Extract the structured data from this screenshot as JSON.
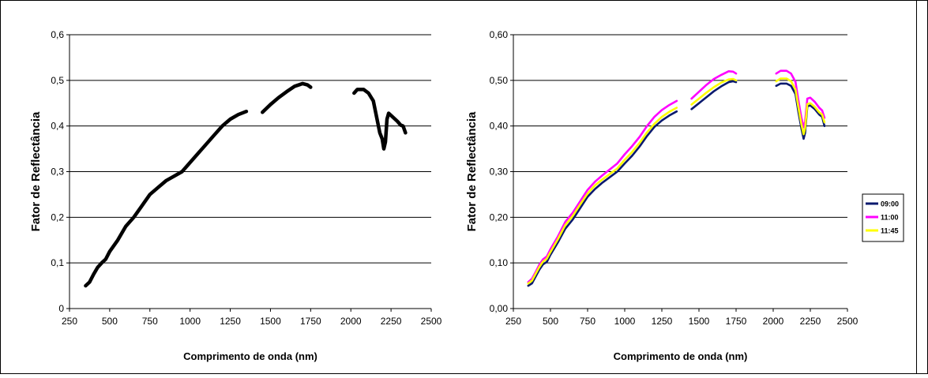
{
  "chart_data": [
    {
      "type": "line",
      "xlabel": "Comprimento de onda (nm)",
      "ylabel": "Fator de Reflectância",
      "xlim": [
        250,
        2500
      ],
      "ylim": [
        0,
        0.6
      ],
      "xticks": [
        "250",
        "500",
        "750",
        "1000",
        "1250",
        "1500",
        "1750",
        "2000",
        "2250",
        "2500"
      ],
      "yticks": [
        "0",
        "0,1",
        "0,2",
        "0,3",
        "0,4",
        "0,5",
        "0,6"
      ],
      "grid": "horizontal",
      "legend": "none",
      "colors": [
        "#000000"
      ],
      "series": [
        {
          "segments": [
            [
              [
                350,
                0.05
              ],
              [
                375,
                0.058
              ],
              [
                400,
                0.075
              ],
              [
                425,
                0.09
              ],
              [
                450,
                0.1
              ],
              [
                475,
                0.108
              ],
              [
                500,
                0.125
              ],
              [
                550,
                0.15
              ],
              [
                600,
                0.18
              ],
              [
                650,
                0.2
              ],
              [
                700,
                0.225
              ],
              [
                750,
                0.25
              ],
              [
                800,
                0.265
              ],
              [
                850,
                0.28
              ],
              [
                900,
                0.29
              ],
              [
                950,
                0.3
              ],
              [
                1000,
                0.32
              ],
              [
                1050,
                0.34
              ],
              [
                1100,
                0.36
              ],
              [
                1150,
                0.38
              ],
              [
                1200,
                0.4
              ],
              [
                1250,
                0.415
              ],
              [
                1300,
                0.425
              ],
              [
                1350,
                0.432
              ]
            ],
            [
              [
                1450,
                0.43
              ],
              [
                1500,
                0.447
              ],
              [
                1550,
                0.462
              ],
              [
                1600,
                0.475
              ],
              [
                1650,
                0.487
              ],
              [
                1700,
                0.493
              ],
              [
                1730,
                0.49
              ],
              [
                1750,
                0.485
              ]
            ],
            [
              [
                2020,
                0.472
              ],
              [
                2040,
                0.48
              ],
              [
                2080,
                0.48
              ],
              [
                2110,
                0.472
              ],
              [
                2140,
                0.455
              ],
              [
                2160,
                0.42
              ],
              [
                2180,
                0.385
              ],
              [
                2195,
                0.372
              ],
              [
                2205,
                0.35
              ],
              [
                2215,
                0.365
              ],
              [
                2225,
                0.415
              ],
              [
                2235,
                0.428
              ],
              [
                2260,
                0.42
              ],
              [
                2290,
                0.41
              ],
              [
                2310,
                0.402
              ],
              [
                2325,
                0.4
              ],
              [
                2340,
                0.385
              ]
            ]
          ]
        }
      ]
    },
    {
      "type": "line",
      "xlabel": "Comprimento de onda (nm)",
      "ylabel": "Fator de Reflectância",
      "xlim": [
        250,
        2500
      ],
      "ylim": [
        0,
        0.6
      ],
      "xticks": [
        "250",
        "500",
        "750",
        "1000",
        "1250",
        "1500",
        "1750",
        "2000",
        "2250",
        "2500"
      ],
      "yticks": [
        "0,00",
        "0,10",
        "0,20",
        "0,30",
        "0,40",
        "0,50",
        "0,60"
      ],
      "grid": "horizontal",
      "legend": "right",
      "series": [
        {
          "name": "09:00",
          "color": "#0a1a6e",
          "segments": [
            [
              [
                350,
                0.05
              ],
              [
                375,
                0.055
              ],
              [
                400,
                0.07
              ],
              [
                425,
                0.085
              ],
              [
                450,
                0.097
              ],
              [
                475,
                0.102
              ],
              [
                500,
                0.118
              ],
              [
                550,
                0.145
              ],
              [
                600,
                0.175
              ],
              [
                650,
                0.195
              ],
              [
                700,
                0.22
              ],
              [
                750,
                0.245
              ],
              [
                800,
                0.262
              ],
              [
                850,
                0.276
              ],
              [
                900,
                0.288
              ],
              [
                950,
                0.3
              ],
              [
                1000,
                0.318
              ],
              [
                1050,
                0.335
              ],
              [
                1100,
                0.355
              ],
              [
                1150,
                0.378
              ],
              [
                1200,
                0.398
              ],
              [
                1250,
                0.412
              ],
              [
                1300,
                0.423
              ],
              [
                1350,
                0.432
              ]
            ],
            [
              [
                1450,
                0.437
              ],
              [
                1500,
                0.45
              ],
              [
                1550,
                0.463
              ],
              [
                1600,
                0.476
              ],
              [
                1650,
                0.487
              ],
              [
                1700,
                0.496
              ],
              [
                1730,
                0.498
              ],
              [
                1750,
                0.496
              ]
            ],
            [
              [
                2020,
                0.488
              ],
              [
                2050,
                0.493
              ],
              [
                2090,
                0.493
              ],
              [
                2120,
                0.488
              ],
              [
                2150,
                0.47
              ],
              [
                2170,
                0.43
              ],
              [
                2190,
                0.395
              ],
              [
                2205,
                0.372
              ],
              [
                2215,
                0.385
              ],
              [
                2230,
                0.443
              ],
              [
                2250,
                0.445
              ],
              [
                2280,
                0.437
              ],
              [
                2310,
                0.425
              ],
              [
                2330,
                0.42
              ],
              [
                2345,
                0.4
              ]
            ]
          ]
        },
        {
          "name": "11:00",
          "color": "#ff00ff",
          "segments": [
            [
              [
                350,
                0.058
              ],
              [
                375,
                0.065
              ],
              [
                400,
                0.08
              ],
              [
                425,
                0.096
              ],
              [
                450,
                0.108
              ],
              [
                475,
                0.114
              ],
              [
                500,
                0.13
              ],
              [
                550,
                0.158
              ],
              [
                600,
                0.19
              ],
              [
                650,
                0.21
              ],
              [
                700,
                0.235
              ],
              [
                750,
                0.26
              ],
              [
                800,
                0.278
              ],
              [
                850,
                0.292
              ],
              [
                900,
                0.305
              ],
              [
                950,
                0.318
              ],
              [
                1000,
                0.338
              ],
              [
                1050,
                0.356
              ],
              [
                1100,
                0.376
              ],
              [
                1150,
                0.4
              ],
              [
                1200,
                0.42
              ],
              [
                1250,
                0.435
              ],
              [
                1300,
                0.446
              ],
              [
                1350,
                0.455
              ]
            ],
            [
              [
                1450,
                0.46
              ],
              [
                1500,
                0.475
              ],
              [
                1550,
                0.49
              ],
              [
                1600,
                0.503
              ],
              [
                1650,
                0.512
              ],
              [
                1700,
                0.52
              ],
              [
                1730,
                0.519
              ],
              [
                1750,
                0.515
              ]
            ],
            [
              [
                2020,
                0.515
              ],
              [
                2050,
                0.521
              ],
              [
                2090,
                0.521
              ],
              [
                2120,
                0.515
              ],
              [
                2150,
                0.497
              ],
              [
                2170,
                0.455
              ],
              [
                2190,
                0.418
              ],
              [
                2205,
                0.397
              ],
              [
                2215,
                0.41
              ],
              [
                2230,
                0.46
              ],
              [
                2250,
                0.462
              ],
              [
                2280,
                0.453
              ],
              [
                2310,
                0.44
              ],
              [
                2330,
                0.434
              ],
              [
                2345,
                0.418
              ]
            ]
          ]
        },
        {
          "name": "11:45",
          "color": "#ffff00",
          "segments": [
            [
              [
                350,
                0.055
              ],
              [
                375,
                0.061
              ],
              [
                400,
                0.076
              ],
              [
                425,
                0.091
              ],
              [
                450,
                0.103
              ],
              [
                475,
                0.109
              ],
              [
                500,
                0.124
              ],
              [
                550,
                0.152
              ],
              [
                600,
                0.183
              ],
              [
                650,
                0.203
              ],
              [
                700,
                0.228
              ],
              [
                750,
                0.252
              ],
              [
                800,
                0.27
              ],
              [
                850,
                0.283
              ],
              [
                900,
                0.295
              ],
              [
                950,
                0.307
              ],
              [
                1000,
                0.326
              ],
              [
                1050,
                0.343
              ],
              [
                1100,
                0.363
              ],
              [
                1150,
                0.386
              ],
              [
                1200,
                0.405
              ],
              [
                1250,
                0.42
              ],
              [
                1300,
                0.431
              ],
              [
                1350,
                0.44
              ]
            ],
            [
              [
                1450,
                0.447
              ],
              [
                1500,
                0.46
              ],
              [
                1550,
                0.473
              ],
              [
                1600,
                0.485
              ],
              [
                1650,
                0.495
              ],
              [
                1700,
                0.502
              ],
              [
                1730,
                0.503
              ],
              [
                1750,
                0.5
              ]
            ],
            [
              [
                2020,
                0.498
              ],
              [
                2050,
                0.504
              ],
              [
                2090,
                0.504
              ],
              [
                2120,
                0.498
              ],
              [
                2150,
                0.48
              ],
              [
                2170,
                0.44
              ],
              [
                2190,
                0.404
              ],
              [
                2205,
                0.382
              ],
              [
                2215,
                0.395
              ],
              [
                2230,
                0.448
              ],
              [
                2250,
                0.45
              ],
              [
                2280,
                0.442
              ],
              [
                2310,
                0.43
              ],
              [
                2330,
                0.425
              ],
              [
                2345,
                0.408
              ]
            ]
          ]
        }
      ]
    }
  ]
}
